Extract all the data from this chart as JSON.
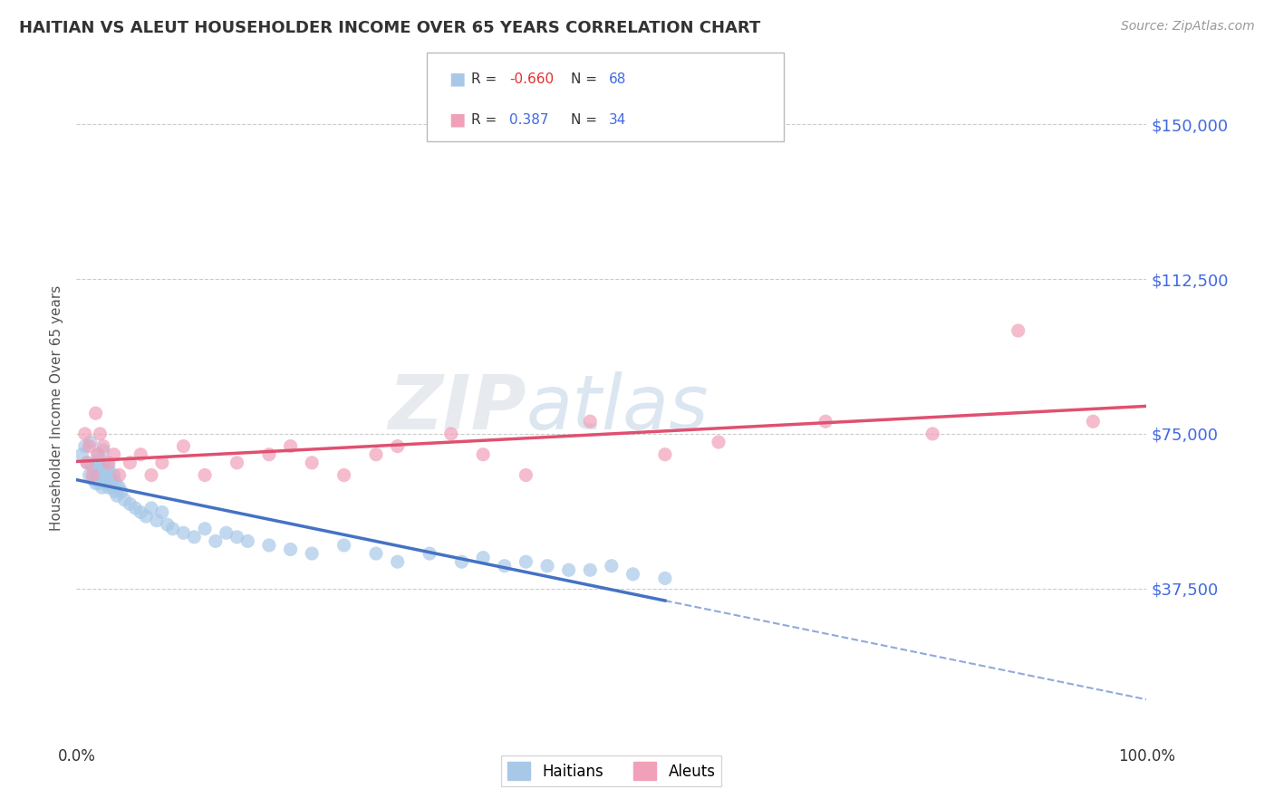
{
  "title": "HAITIAN VS ALEUT HOUSEHOLDER INCOME OVER 65 YEARS CORRELATION CHART",
  "source": "Source: ZipAtlas.com",
  "ylabel": "Householder Income Over 65 years",
  "xlim": [
    0.0,
    100.0
  ],
  "ylim": [
    0,
    162500
  ],
  "yticks": [
    0,
    37500,
    75000,
    112500,
    150000
  ],
  "ytick_labels": [
    "",
    "$37,500",
    "$75,000",
    "$112,500",
    "$150,000"
  ],
  "background_color": "#ffffff",
  "grid_color": "#cccccc",
  "haitian_color": "#a8c8e8",
  "aleut_color": "#f0a0b8",
  "haitian_line_color": "#4472c4",
  "aleut_line_color": "#e05070",
  "title_color": "#333333",
  "axis_label_color": "#555555",
  "ytick_color": "#4169E1",
  "watermark": "ZIPatlas",
  "R_haitian": -0.66,
  "N_haitian": 68,
  "R_aleut": 0.387,
  "N_aleut": 34,
  "haitian_x": [
    0.5,
    0.8,
    1.0,
    1.2,
    1.3,
    1.5,
    1.5,
    1.7,
    1.8,
    1.9,
    2.0,
    2.0,
    2.1,
    2.2,
    2.3,
    2.4,
    2.5,
    2.5,
    2.6,
    2.7,
    2.8,
    2.9,
    3.0,
    3.0,
    3.1,
    3.2,
    3.3,
    3.4,
    3.5,
    3.6,
    3.7,
    3.8,
    4.0,
    4.2,
    4.5,
    5.0,
    5.5,
    6.0,
    6.5,
    7.0,
    7.5,
    8.0,
    8.5,
    9.0,
    10.0,
    11.0,
    12.0,
    13.0,
    14.0,
    15.0,
    16.0,
    18.0,
    20.0,
    22.0,
    25.0,
    28.0,
    30.0,
    33.0,
    36.0,
    38.0,
    40.0,
    42.0,
    44.0,
    46.0,
    48.0,
    50.0,
    52.0,
    55.0
  ],
  "haitian_y": [
    70000,
    72000,
    68000,
    65000,
    73000,
    67000,
    64000,
    66000,
    63000,
    68000,
    65000,
    70000,
    63000,
    67000,
    64000,
    62000,
    71000,
    65000,
    68000,
    64000,
    63000,
    66000,
    62000,
    67000,
    65000,
    63000,
    64000,
    62000,
    65000,
    61000,
    63000,
    60000,
    62000,
    61000,
    59000,
    58000,
    57000,
    56000,
    55000,
    57000,
    54000,
    56000,
    53000,
    52000,
    51000,
    50000,
    52000,
    49000,
    51000,
    50000,
    49000,
    48000,
    47000,
    46000,
    48000,
    46000,
    44000,
    46000,
    44000,
    45000,
    43000,
    44000,
    43000,
    42000,
    42000,
    43000,
    41000,
    40000
  ],
  "aleut_x": [
    0.8,
    1.0,
    1.2,
    1.5,
    1.8,
    2.0,
    2.2,
    2.5,
    3.0,
    3.5,
    4.0,
    5.0,
    6.0,
    7.0,
    8.0,
    10.0,
    12.0,
    15.0,
    18.0,
    20.0,
    22.0,
    25.0,
    28.0,
    30.0,
    35.0,
    38.0,
    42.0,
    48.0,
    55.0,
    60.0,
    70.0,
    80.0,
    88.0,
    95.0
  ],
  "aleut_y": [
    75000,
    68000,
    72000,
    65000,
    80000,
    70000,
    75000,
    72000,
    68000,
    70000,
    65000,
    68000,
    70000,
    65000,
    68000,
    72000,
    65000,
    68000,
    70000,
    72000,
    68000,
    65000,
    70000,
    72000,
    75000,
    70000,
    65000,
    78000,
    70000,
    73000,
    78000,
    75000,
    100000,
    78000
  ]
}
